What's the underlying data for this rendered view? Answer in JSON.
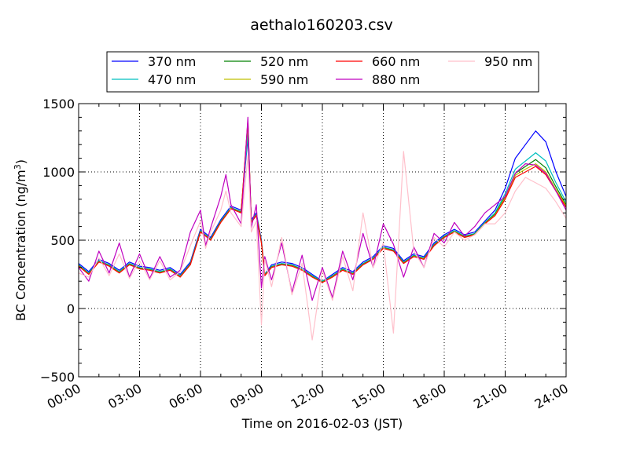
{
  "chart_data": {
    "type": "line",
    "title": "aethalo160203.csv",
    "xlabel": "Time on 2016-02-03 (JST)",
    "ylabel": "BC Concentration (ng/m",
    "ylabel_sup": "3",
    "ylabel_close": ")",
    "xlim": [
      "00:00",
      "24:00"
    ],
    "ylim": [
      -500,
      1500
    ],
    "x_ticks": [
      "00:00",
      "03:00",
      "06:00",
      "09:00",
      "12:00",
      "15:00",
      "18:00",
      "21:00",
      "24:00"
    ],
    "y_ticks": [
      -500,
      0,
      500,
      1000,
      1500
    ],
    "grid": true,
    "legend": {
      "placement": "top-center",
      "columns": 4
    },
    "x": [
      "00:00",
      "00:30",
      "01:00",
      "01:30",
      "02:00",
      "02:30",
      "03:00",
      "03:30",
      "04:00",
      "04:30",
      "05:00",
      "05:30",
      "06:00",
      "06:15",
      "06:30",
      "07:00",
      "07:15",
      "07:30",
      "08:00",
      "08:20",
      "08:30",
      "08:45",
      "09:00",
      "09:10",
      "09:30",
      "10:00",
      "10:30",
      "11:00",
      "11:30",
      "12:00",
      "12:30",
      "13:00",
      "13:30",
      "14:00",
      "14:30",
      "15:00",
      "15:30",
      "16:00",
      "16:30",
      "17:00",
      "17:30",
      "18:00",
      "18:30",
      "19:00",
      "19:30",
      "20:00",
      "20:30",
      "21:00",
      "21:30",
      "22:00",
      "22:30",
      "23:00",
      "23:30",
      "24:00"
    ],
    "series": [
      {
        "name": "370 nm",
        "color": "#0000ff",
        "values": [
          330,
          270,
          360,
          330,
          280,
          340,
          310,
          300,
          280,
          300,
          250,
          340,
          580,
          550,
          520,
          650,
          700,
          750,
          720,
          1250,
          650,
          700,
          500,
          250,
          320,
          340,
          330,
          300,
          250,
          200,
          250,
          300,
          270,
          340,
          380,
          460,
          440,
          350,
          400,
          380,
          480,
          540,
          580,
          540,
          560,
          640,
          720,
          880,
          1100,
          1200,
          1300,
          1220,
          1000,
          820
        ]
      },
      {
        "name": "470 nm",
        "color": "#00bfbf",
        "values": [
          320,
          260,
          350,
          320,
          270,
          330,
          300,
          290,
          270,
          290,
          240,
          330,
          570,
          540,
          510,
          640,
          690,
          740,
          710,
          1280,
          640,
          690,
          490,
          250,
          310,
          330,
          320,
          290,
          240,
          200,
          240,
          290,
          260,
          330,
          370,
          450,
          430,
          340,
          390,
          370,
          470,
          530,
          570,
          530,
          550,
          630,
          700,
          840,
          1020,
          1080,
          1140,
          1080,
          920,
          780
        ]
      },
      {
        "name": "520 nm",
        "color": "#008000",
        "values": [
          315,
          255,
          345,
          315,
          265,
          325,
          295,
          285,
          265,
          285,
          235,
          325,
          565,
          535,
          505,
          635,
          685,
          735,
          705,
          1360,
          635,
          685,
          485,
          245,
          305,
          325,
          315,
          285,
          235,
          195,
          235,
          285,
          255,
          325,
          365,
          445,
          425,
          335,
          385,
          365,
          465,
          525,
          565,
          525,
          545,
          625,
          690,
          820,
          990,
          1040,
          1090,
          1030,
          890,
          760
        ]
      },
      {
        "name": "590 nm",
        "color": "#bfbf00",
        "values": [
          312,
          252,
          342,
          312,
          262,
          322,
          292,
          282,
          262,
          282,
          232,
          322,
          562,
          532,
          502,
          632,
          682,
          732,
          702,
          1350,
          632,
          682,
          482,
          242,
          302,
          322,
          312,
          282,
          232,
          192,
          232,
          282,
          252,
          322,
          362,
          442,
          422,
          332,
          382,
          362,
          462,
          522,
          562,
          522,
          542,
          622,
          685,
          810,
          975,
          1020,
          1060,
          1000,
          870,
          750
        ]
      },
      {
        "name": "660 nm",
        "color": "#ff0000",
        "values": [
          310,
          250,
          340,
          310,
          260,
          320,
          290,
          280,
          260,
          280,
          230,
          320,
          560,
          530,
          500,
          630,
          680,
          730,
          700,
          1380,
          630,
          680,
          480,
          240,
          300,
          320,
          310,
          280,
          230,
          190,
          230,
          280,
          250,
          320,
          360,
          440,
          420,
          330,
          380,
          360,
          460,
          520,
          560,
          520,
          540,
          620,
          680,
          800,
          960,
          1000,
          1040,
          980,
          860,
          740
        ]
      },
      {
        "name": "880 nm",
        "color": "#bf00bf",
        "values": [
          300,
          200,
          420,
          260,
          480,
          230,
          400,
          220,
          380,
          230,
          280,
          560,
          720,
          460,
          590,
          820,
          980,
          760,
          620,
          1400,
          590,
          760,
          150,
          380,
          210,
          480,
          120,
          390,
          60,
          300,
          80,
          420,
          210,
          550,
          300,
          620,
          470,
          230,
          450,
          300,
          550,
          480,
          630,
          530,
          600,
          700,
          760,
          820,
          990,
          1060,
          1050,
          990,
          860,
          720
        ]
      },
      {
        "name": "950 nm",
        "color": "#ffc0cb",
        "values": [
          260,
          230,
          370,
          240,
          400,
          220,
          350,
          210,
          350,
          210,
          270,
          460,
          640,
          440,
          560,
          720,
          860,
          700,
          600,
          1120,
          560,
          640,
          -120,
          360,
          160,
          520,
          100,
          330,
          -230,
          280,
          60,
          380,
          130,
          700,
          300,
          480,
          -180,
          1150,
          420,
          300,
          520,
          450,
          560,
          500,
          540,
          620,
          620,
          700,
          860,
          960,
          920,
          880,
          780,
          660
        ]
      }
    ]
  }
}
